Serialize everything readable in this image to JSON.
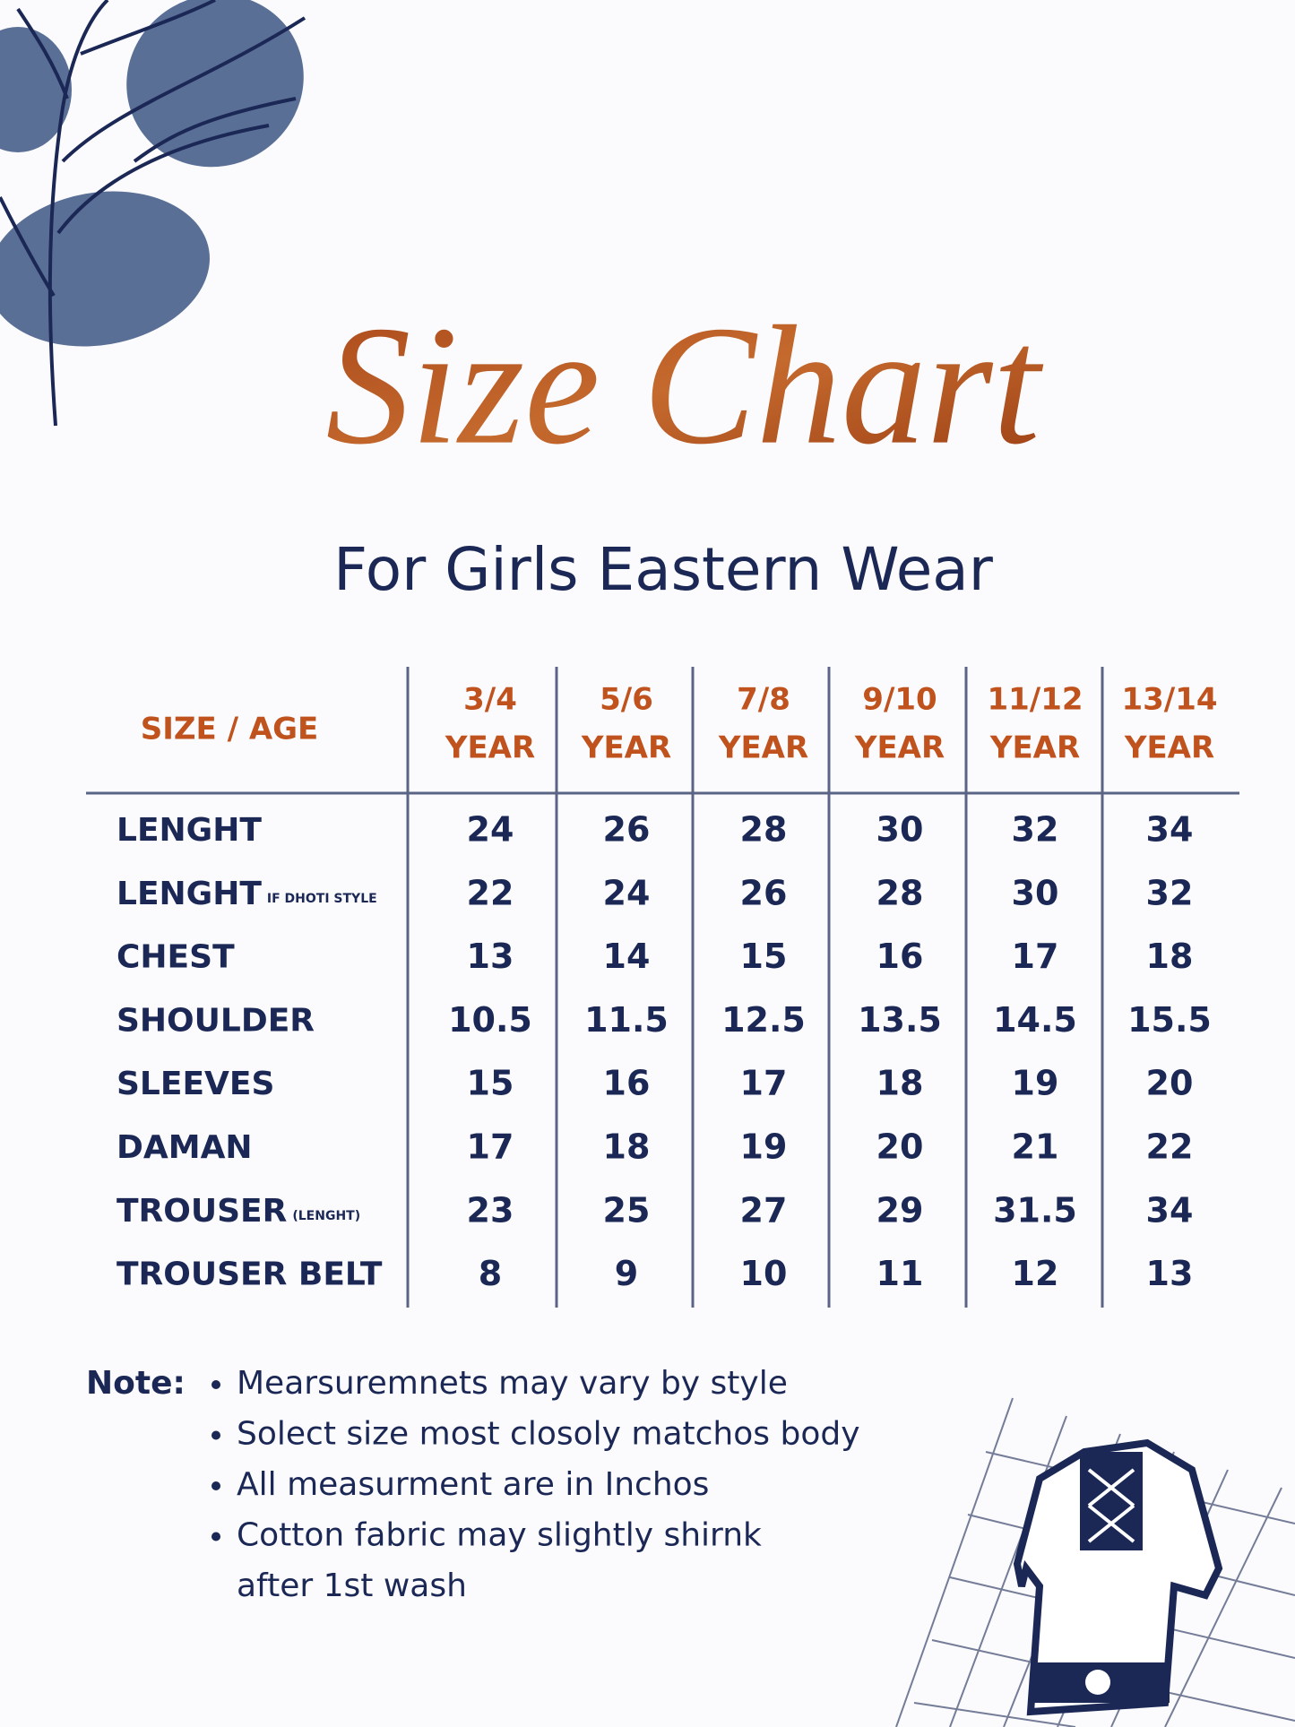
{
  "header": {
    "title": "Size Chart",
    "subtitle": "For Girls Eastern Wear"
  },
  "table": {
    "corner": "SIZE / AGE",
    "columns": [
      {
        "size": "3/4",
        "unit": "YEAR"
      },
      {
        "size": "5/6",
        "unit": "YEAR"
      },
      {
        "size": "7/8",
        "unit": "YEAR"
      },
      {
        "size": "9/10",
        "unit": "YEAR"
      },
      {
        "size": "11/12",
        "unit": "YEAR"
      },
      {
        "size": "13/14",
        "unit": "YEAR"
      }
    ],
    "rows": [
      {
        "label": "LENGHT",
        "values": [
          24,
          26,
          28,
          30,
          32,
          34
        ]
      },
      {
        "label": "LENGHT",
        "note": "IF DHOTI STYLE",
        "values": [
          22,
          24,
          26,
          28,
          30,
          32
        ]
      },
      {
        "label": "CHEST",
        "values": [
          13,
          14,
          15,
          16,
          17,
          18
        ]
      },
      {
        "label": "SHOULDER",
        "values": [
          10.5,
          11.5,
          12.5,
          13.5,
          14.5,
          15.5
        ]
      },
      {
        "label": "SLEEVES",
        "values": [
          15,
          16,
          17,
          18,
          19,
          20
        ]
      },
      {
        "label": "DAMAN",
        "values": [
          17,
          18,
          19,
          20,
          21,
          22
        ]
      },
      {
        "label": "TROUSER",
        "note": "(LENGHT)",
        "values": [
          23,
          25,
          27,
          29,
          31.5,
          34
        ]
      },
      {
        "label": "TROUSER BELT",
        "values": [
          8,
          9,
          10,
          11,
          12,
          13
        ]
      }
    ]
  },
  "notes": {
    "label": "Note:",
    "items": [
      [
        "Mearsuremnets may vary by style"
      ],
      [
        "Solect size most closoly matchos body"
      ],
      [
        "All measurment are in Inchos"
      ],
      [
        "Cotton fabric may slightly shirnk",
        "after 1st wash"
      ]
    ]
  }
}
